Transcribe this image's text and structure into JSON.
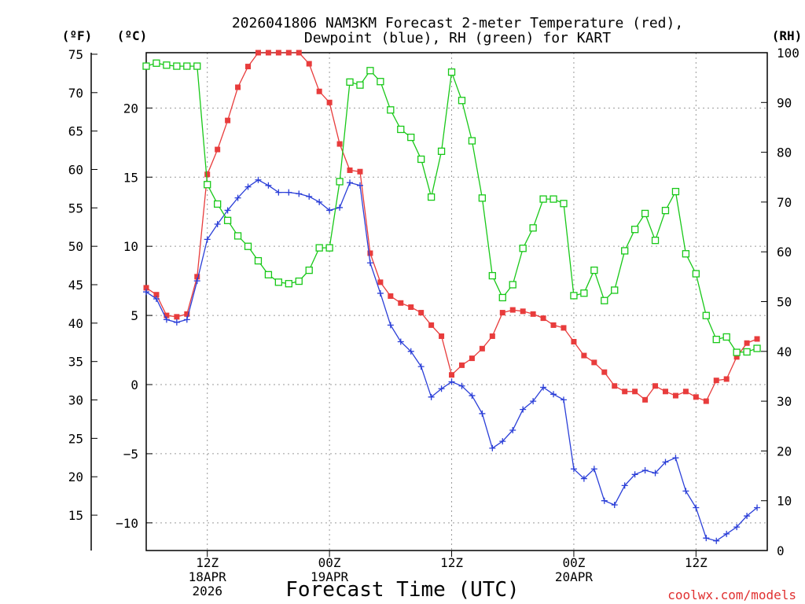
{
  "chart_data": {
    "type": "line",
    "title": [
      "2026041806 NAM3KM Forecast 2-meter Temperature (red),",
      "Dewpoint (blue), RH (green) for KART"
    ],
    "xlabel": "Forecast Time (UTC)",
    "credit": "coolwx.com/models",
    "units": {
      "fahrenheit": "(ºF)",
      "celsius": "(ºC)",
      "rh": "(RH)"
    },
    "x_hours_range": [
      0,
      61
    ],
    "celsius_range": [
      -12,
      24
    ],
    "rh_range": [
      0,
      100
    ],
    "x_ticks": [
      {
        "hour": 6,
        "lines": [
          "12Z",
          "18APR",
          "2026"
        ]
      },
      {
        "hour": 18,
        "lines": [
          "00Z",
          "19APR"
        ]
      },
      {
        "hour": 30,
        "lines": [
          "12Z"
        ]
      },
      {
        "hour": 42,
        "lines": [
          "00Z",
          "20APR"
        ]
      },
      {
        "hour": 54,
        "lines": [
          "12Z"
        ]
      }
    ],
    "celsius_ticks": [
      20,
      15,
      10,
      5,
      0,
      -5,
      -10
    ],
    "celsius_tick_labels": [
      "20",
      "15",
      "10",
      "5",
      "0",
      "−5",
      "−10"
    ],
    "fahrenheit_ticks": [
      75,
      70,
      65,
      60,
      55,
      50,
      45,
      40,
      35,
      30,
      25,
      20,
      15
    ],
    "rh_ticks": [
      100,
      90,
      80,
      70,
      60,
      50,
      40,
      30,
      20,
      10,
      0
    ],
    "series": [
      {
        "name": "2-meter Temperature",
        "unit": "C",
        "color": "#e83c3c",
        "marker": "filled-square",
        "values": [
          7,
          6.5,
          5,
          4.9,
          5.1,
          7.8,
          15.2,
          17,
          19.1,
          21.5,
          23,
          24.1,
          24.8,
          24.7,
          24.8,
          24.3,
          23.2,
          21.2,
          20.4,
          17.4,
          15.5,
          15.4,
          9.5,
          7.4,
          6.4,
          5.9,
          5.6,
          5.2,
          4.3,
          3.5,
          0.7,
          1.4,
          1.9,
          2.6,
          3.5,
          5.2,
          5.4,
          5.3,
          5.1,
          4.8,
          4.3,
          4.1,
          3.1,
          2.1,
          1.6,
          0.9,
          -0.1,
          -0.5,
          -0.5,
          -1.1,
          -0.1,
          -0.5,
          -0.8,
          -0.5,
          -0.9,
          -1.2,
          0.3,
          0.4,
          2,
          3,
          3.3
        ]
      },
      {
        "name": "Dewpoint",
        "unit": "C",
        "color": "#2b3fd8",
        "marker": "plus",
        "values": [
          6.7,
          6.2,
          4.7,
          4.5,
          4.7,
          7.5,
          10.5,
          11.6,
          12.6,
          13.5,
          14.3,
          14.8,
          14.4,
          13.9,
          13.9,
          13.8,
          13.6,
          13.2,
          12.6,
          12.8,
          14.6,
          14.4,
          8.8,
          6.6,
          4.3,
          3.1,
          2.4,
          1.3,
          -0.9,
          -0.3,
          0.2,
          -0.1,
          -0.8,
          -2.1,
          -4.6,
          -4.1,
          -3.3,
          -1.8,
          -1.2,
          -0.2,
          -0.7,
          -1.1,
          -6.1,
          -6.8,
          -6.1,
          -8.4,
          -8.7,
          -7.3,
          -6.5,
          -6.2,
          -6.4,
          -5.6,
          -5.3,
          -7.7,
          -8.9,
          -11.1,
          -11.3,
          -10.8,
          -10.3,
          -9.5,
          -8.9
        ]
      },
      {
        "name": "RH",
        "unit": "%",
        "color": "#18c818",
        "marker": "open-square",
        "values": [
          97.3,
          97.9,
          97.5,
          97.3,
          97.3,
          97.3,
          73.5,
          69.6,
          66.3,
          63.2,
          61.1,
          58.2,
          55.4,
          53.9,
          53.6,
          54.1,
          56.3,
          60.8,
          60.8,
          74.1,
          94.1,
          93.5,
          96.4,
          94.2,
          88.5,
          84.6,
          83,
          78.6,
          71,
          80.2,
          96.1,
          90.4,
          82.3,
          70.8,
          55.2,
          50.8,
          53.4,
          60.7,
          64.8,
          70.6,
          70.6,
          69.7,
          51.2,
          51.7,
          56.3,
          50.2,
          52.3,
          60.2,
          64.5,
          67.7,
          62.3,
          68.3,
          72.1,
          59.6,
          55.6,
          47.2,
          42.4,
          42.9,
          39.8,
          39.9,
          40.6
        ]
      }
    ]
  }
}
